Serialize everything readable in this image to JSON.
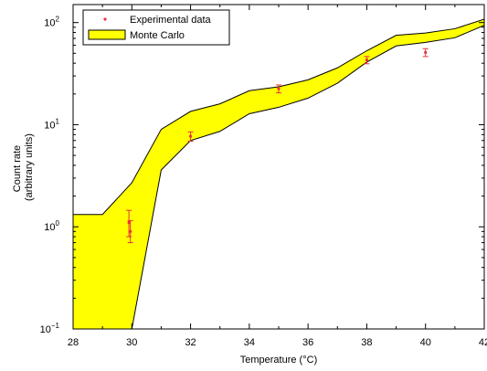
{
  "chart_data": {
    "type": "area",
    "xlabel": "Temperature (°C)",
    "ylabel_lines": [
      "Count rate",
      "(arbitrary units)"
    ],
    "xlim": [
      28,
      42
    ],
    "ylim": [
      0.1,
      150
    ],
    "yscale": "log",
    "x_ticks": [
      28,
      30,
      32,
      34,
      36,
      38,
      40,
      42
    ],
    "y_ticks": [
      {
        "value": 0.1,
        "base": "10",
        "exp": "−1"
      },
      {
        "value": 1,
        "base": "10",
        "exp": "0"
      },
      {
        "value": 10,
        "base": "10",
        "exp": "1"
      },
      {
        "value": 100,
        "base": "10",
        "exp": "2"
      }
    ],
    "legend": {
      "position": "top-left",
      "entries": [
        {
          "label": "Experimental data",
          "kind": "points"
        },
        {
          "label": "Monte Carlo",
          "kind": "band"
        }
      ]
    },
    "colors": {
      "band_fill": "#ffff00",
      "band_edge": "#000000",
      "points": "#e8333a"
    },
    "series": [
      {
        "name": "Monte Carlo",
        "kind": "band",
        "x": [
          28,
          29,
          30,
          31,
          32,
          33,
          34,
          35,
          36,
          37,
          38,
          39,
          40,
          41,
          42
        ],
        "upper": [
          1.32,
          1.32,
          2.7,
          9.0,
          13.5,
          16,
          21.5,
          23.5,
          27.5,
          36,
          53,
          75,
          79,
          87,
          108
        ],
        "lower": [
          0.1,
          0.1,
          0.1,
          3.6,
          7.0,
          8.6,
          12.8,
          14.8,
          18.2,
          25.5,
          41,
          59,
          64,
          71,
          94
        ]
      },
      {
        "name": "Experimental data",
        "kind": "points",
        "points": [
          {
            "x": 29.9,
            "y": 1.1,
            "err_lo": 0.8,
            "err_hi": 1.45
          },
          {
            "x": 29.95,
            "y": 0.9,
            "err_lo": 0.7,
            "err_hi": 1.15
          },
          {
            "x": 32.0,
            "y": 7.7,
            "err_lo": 6.9,
            "err_hi": 8.5
          },
          {
            "x": 35.0,
            "y": 22.5,
            "err_lo": 20.5,
            "err_hi": 24.5
          },
          {
            "x": 38.0,
            "y": 43,
            "err_lo": 39.5,
            "err_hi": 46.5
          },
          {
            "x": 40.0,
            "y": 51,
            "err_lo": 46.5,
            "err_hi": 55.5
          }
        ]
      }
    ]
  }
}
